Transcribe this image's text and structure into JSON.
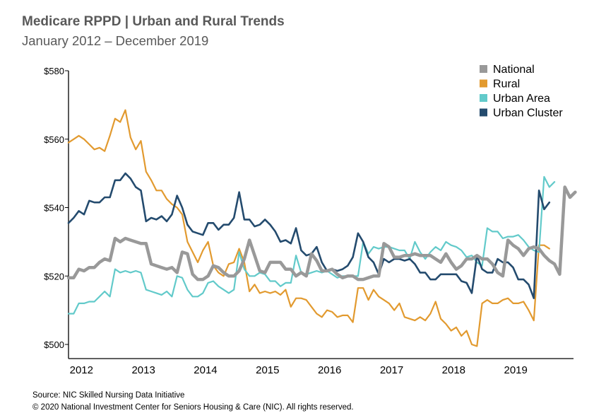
{
  "header": {
    "title": "Medicare RPPD | Urban and Rural Trends",
    "subtitle": "January  2012 – December 2019"
  },
  "footer": {
    "source": "Source: NIC Skilled Nursing Data Initiative",
    "copyright": "© 2020 National Investment Center for Seniors Housing & Care (NIC).  All rights reserved."
  },
  "chart_data": {
    "type": "line",
    "title": "Medicare RPPD | Urban and Rural Trends",
    "subtitle": "January 2012 – December 2019",
    "xlabel": "",
    "ylabel": "",
    "ylim": [
      500,
      580
    ],
    "y_ticks": [
      500,
      520,
      540,
      560,
      580
    ],
    "y_tick_labels": [
      "$500",
      "$520",
      "$540",
      "$560",
      "$580"
    ],
    "x_ticks": [
      "2012",
      "2013",
      "2014",
      "2015",
      "2016",
      "2017",
      "2018",
      "2019"
    ],
    "x_start": "Jan 2012",
    "x_end": "Sep 2019",
    "legend_position": "top-right",
    "grid": false,
    "series": [
      {
        "name": "National",
        "color": "#999999",
        "values": [
          519.5,
          519.5,
          522,
          521.5,
          522.5,
          522.5,
          524,
          525,
          524.5,
          531,
          530,
          531,
          530.5,
          530,
          529.5,
          529.5,
          523.5,
          523,
          522.5,
          522,
          522.5,
          521,
          527,
          526.5,
          520.5,
          519,
          519,
          520,
          523,
          522.5,
          521,
          520,
          520,
          521.5,
          525,
          530.5,
          526,
          521.5,
          521,
          524,
          524,
          524,
          522,
          522,
          520,
          521,
          520,
          526.5,
          524.5,
          521.5,
          521.5,
          522,
          520.5,
          519.5,
          520,
          520,
          519,
          519,
          519.5,
          520,
          520,
          529.5,
          528.5,
          525.5,
          525.5,
          526,
          526,
          526.5,
          526,
          526,
          526,
          525,
          524,
          526.5,
          524,
          522,
          523,
          525,
          525,
          526,
          525,
          525,
          523.5,
          521,
          520,
          530.5,
          529,
          528,
          526,
          528,
          528.5,
          528,
          526,
          524.5,
          523.5,
          520.5,
          546,
          543,
          544.5
        ]
      },
      {
        "name": "Rural",
        "color": "#E29A2F",
        "values": [
          559,
          560,
          561,
          560,
          558.5,
          557,
          557.5,
          556.5,
          561,
          566,
          565,
          568.5,
          560.5,
          557,
          559.5,
          550.5,
          548,
          545,
          545,
          542.5,
          541,
          540,
          538,
          530,
          527,
          524,
          527.5,
          530,
          523,
          521,
          520,
          523.5,
          524,
          528,
          524,
          515.5,
          517.5,
          515,
          515.5,
          515,
          515.5,
          514.5,
          516,
          511,
          513.5,
          513.5,
          513,
          511,
          509,
          508,
          510,
          509.5,
          508,
          508.5,
          508.5,
          506.5,
          516.5,
          516.5,
          513,
          516,
          514,
          513,
          512,
          510,
          512,
          508,
          507.5,
          507,
          508,
          507,
          509,
          512.5,
          507.5,
          506,
          504,
          505,
          502.5,
          504,
          500,
          499.5,
          512,
          513,
          512,
          512,
          513,
          513.5,
          512,
          512,
          512.5,
          510,
          507,
          529,
          529,
          528
        ]
      },
      {
        "name": "Urban Area",
        "color": "#62CACA",
        "values": [
          509,
          509,
          512,
          512,
          512.5,
          512.5,
          514,
          515.5,
          514,
          522,
          521,
          521.5,
          521,
          521.5,
          521,
          516,
          515.5,
          515,
          514.5,
          515.5,
          514,
          520,
          519.5,
          516,
          514,
          514,
          515,
          518,
          518.5,
          517,
          516,
          515,
          516,
          527,
          522,
          520,
          520,
          521,
          520.5,
          518.5,
          518.5,
          517,
          518,
          518,
          526,
          521,
          520.5,
          521,
          521.5,
          521,
          521.5,
          520.5,
          519.5,
          520,
          520,
          520,
          520,
          530,
          526.5,
          528.5,
          528,
          528.5,
          528.5,
          528,
          527.5,
          527.5,
          525,
          530,
          527,
          525,
          527,
          528.5,
          527.5,
          530,
          529,
          528.5,
          527.5,
          525.5,
          526,
          524,
          523,
          534,
          533,
          533,
          531,
          531.5,
          531.5,
          532,
          530.5,
          528.5,
          527.5,
          527,
          549,
          546,
          547.5
        ]
      },
      {
        "name": "Urban Cluster",
        "color": "#244B6E",
        "values": [
          535.5,
          537,
          539,
          538,
          542,
          541.5,
          541.5,
          543,
          543,
          548,
          548,
          550,
          548.5,
          546,
          545,
          536,
          537,
          536.5,
          537.5,
          536,
          538,
          543.5,
          540,
          535,
          533,
          532.5,
          532,
          535.5,
          535.5,
          533.5,
          535,
          535,
          537,
          544.5,
          536.5,
          536.5,
          534.5,
          535,
          536.5,
          535,
          533,
          530,
          530.5,
          529.5,
          534,
          527.5,
          526,
          526.5,
          528.5,
          524,
          521.5,
          522,
          521.5,
          522,
          523,
          525.5,
          532.5,
          530,
          525.5,
          524,
          520.5,
          525,
          524,
          525,
          525,
          524.5,
          525,
          523.5,
          521,
          521,
          519,
          519,
          520.5,
          520.5,
          520.5,
          520.5,
          518.5,
          518,
          515,
          526,
          522,
          521,
          521,
          525,
          524,
          524,
          522.5,
          519,
          519,
          517.5,
          513.5,
          545,
          539.5,
          541.5
        ]
      }
    ]
  }
}
